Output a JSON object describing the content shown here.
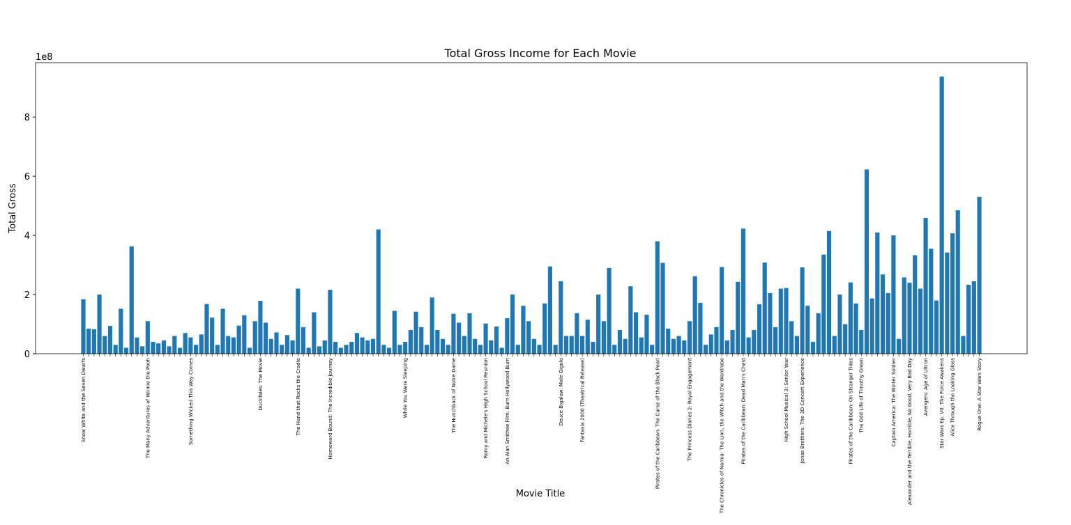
{
  "chart_data": {
    "type": "bar",
    "title": "Total Gross Income for Each Movie",
    "xlabel": "Movie Title",
    "ylabel": "Total Gross",
    "offset_text": "1e8",
    "color": "#1f77b4",
    "categories": [
      "Snow White and the Seven Dwarfs",
      null,
      null,
      null,
      null,
      null,
      null,
      null,
      null,
      null,
      null,
      null,
      "The Many Adventures of Winnie the Pooh",
      null,
      null,
      null,
      null,
      null,
      null,
      null,
      "Something Wicked This Way Comes",
      null,
      null,
      null,
      null,
      null,
      null,
      null,
      null,
      null,
      null,
      null,
      null,
      "DuckTales: The Movie",
      null,
      null,
      null,
      null,
      null,
      null,
      "The Hand that Rocks the Cradle",
      null,
      null,
      null,
      null,
      null,
      "Homeward Bound: The Incredible Journey",
      null,
      null,
      null,
      null,
      null,
      null,
      null,
      null,
      null,
      null,
      null,
      null,
      null,
      "While You Were Sleeping",
      null,
      null,
      null,
      null,
      null,
      null,
      null,
      null,
      "The Hunchback of Notre Dame",
      null,
      null,
      null,
      null,
      null,
      "Romy and Michele's High School Reunion",
      null,
      null,
      null,
      "An Alan Smithee Film: Burn Hollywood Burn",
      null,
      null,
      null,
      null,
      null,
      null,
      null,
      null,
      null,
      "Deuce Bigalow: Male Gigolo",
      null,
      null,
      null,
      "Fantasia 2000 (Theatrical Release)",
      null,
      null,
      null,
      null,
      null,
      null,
      null,
      null,
      null,
      null,
      null,
      null,
      null,
      "Pirates of the Caribbean: The Curse of the Black Pearl",
      null,
      null,
      null,
      null,
      null,
      "The Princess Diaries 2: Royal Engagement",
      null,
      null,
      null,
      null,
      null,
      "The Chronicles of Narnia: The Lion, the Witch and the Wardrobe",
      null,
      null,
      null,
      "Pirates of the Caribbean: Dead Man's Chest",
      null,
      null,
      null,
      null,
      null,
      null,
      null,
      "High School Musical 3: Senior Year",
      null,
      null,
      "Jonas Brothers: The 3D Concert Experience",
      null,
      null,
      null,
      null,
      null,
      null,
      null,
      null,
      "Pirates of the Caribbean: On Stranger Tides",
      null,
      "The Odd Life of Timothy Green",
      null,
      null,
      null,
      null,
      null,
      "Captain America: The Winter Soldier",
      null,
      null,
      "Alexander and the Terrible, Horrible, No Good, Very Bad Day",
      null,
      null,
      "Avengers: Age of Ultron",
      null,
      null,
      "Star Wars Ep. VII: The Force Awakens",
      null,
      "Alice Through the Looking Glass",
      null,
      null,
      null,
      null,
      "Rogue One: A Star Wars Story"
    ],
    "values": [
      1.84,
      0.85,
      0.83,
      2.0,
      0.6,
      0.94,
      0.3,
      1.52,
      0.2,
      3.63,
      0.55,
      0.25,
      1.1,
      0.4,
      0.35,
      0.45,
      0.25,
      0.6,
      0.2,
      0.7,
      0.55,
      0.3,
      0.65,
      1.68,
      1.22,
      0.3,
      1.52,
      0.6,
      0.55,
      0.95,
      1.3,
      0.2,
      1.1,
      1.79,
      1.05,
      0.5,
      0.72,
      0.3,
      0.63,
      0.45,
      2.2,
      0.9,
      0.2,
      1.4,
      0.25,
      0.45,
      2.16,
      0.4,
      0.2,
      0.3,
      0.4,
      0.7,
      0.55,
      0.45,
      0.5,
      4.2,
      0.3,
      0.2,
      1.45,
      0.3,
      0.4,
      0.8,
      1.42,
      0.9,
      0.3,
      1.9,
      0.8,
      0.5,
      0.3,
      1.35,
      1.05,
      0.6,
      1.37,
      0.5,
      0.3,
      1.02,
      0.45,
      0.92,
      0.2,
      1.2,
      2.0,
      0.3,
      1.62,
      1.1,
      0.5,
      0.3,
      1.7,
      2.95,
      0.3,
      2.45,
      0.6,
      0.6,
      1.37,
      0.6,
      1.15,
      0.4,
      2.0,
      1.1,
      2.9,
      0.3,
      0.8,
      0.5,
      2.28,
      1.4,
      0.55,
      1.32,
      0.3,
      3.8,
      3.07,
      0.85,
      0.5,
      0.6,
      0.45,
      1.1,
      2.62,
      1.72,
      0.3,
      0.65,
      0.9,
      2.93,
      0.45,
      0.8,
      2.43,
      4.23,
      0.55,
      0.8,
      1.67,
      3.08,
      2.05,
      0.9,
      2.2,
      2.22,
      1.1,
      0.6,
      2.92,
      1.62,
      0.4,
      1.37,
      3.35,
      4.15,
      0.6,
      2.0,
      1.0,
      2.41,
      1.7,
      0.8,
      6.23,
      1.87,
      4.1,
      2.68,
      2.05,
      4.0,
      0.5,
      2.58,
      2.4,
      3.33,
      2.2,
      4.59,
      3.55,
      1.8,
      9.37,
      3.42,
      4.07,
      4.85,
      0.6,
      2.33,
      2.45,
      5.3
    ],
    "ylim": [
      0,
      9.84
    ],
    "yticks": [
      0,
      2,
      4,
      6,
      8
    ]
  }
}
